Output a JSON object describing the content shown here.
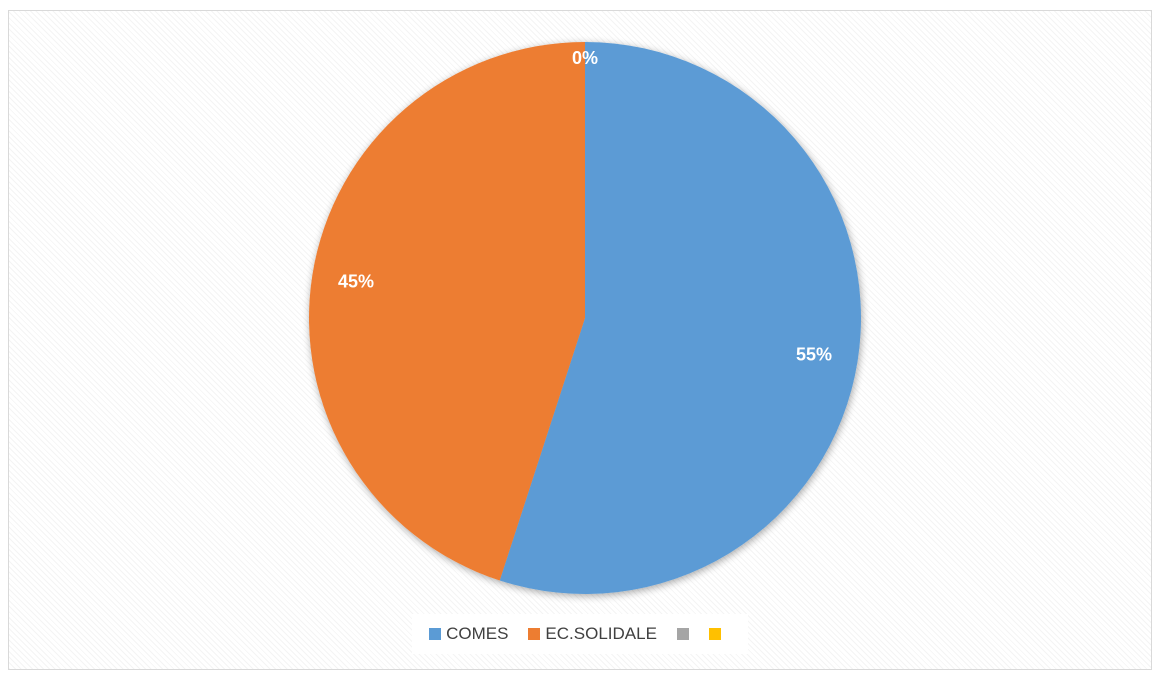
{
  "chart_data": {
    "type": "pie",
    "title": "",
    "categories": [
      "COMES",
      "EC.SOLIDALE",
      "",
      ""
    ],
    "values": [
      55,
      45,
      0,
      0
    ],
    "data_labels": [
      "55%",
      "45%",
      "0%",
      ""
    ],
    "colors": [
      "#5b9bd5",
      "#ed7d31",
      "#a5a5a5",
      "#ffc000"
    ],
    "legend_position": "bottom"
  }
}
